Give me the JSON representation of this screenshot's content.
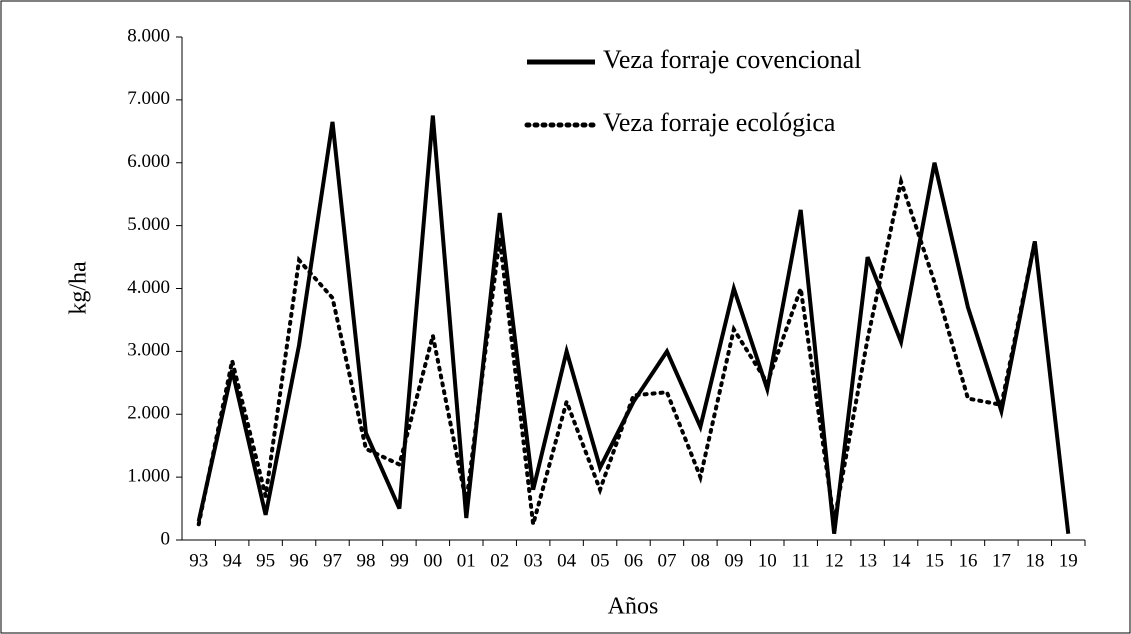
{
  "chart_data": {
    "type": "line",
    "y_label": "kg/ha",
    "x_label": "Años",
    "categories": [
      "93",
      "94",
      "95",
      "96",
      "97",
      "98",
      "99",
      "00",
      "01",
      "02",
      "03",
      "04",
      "05",
      "06",
      "07",
      "08",
      "09",
      "10",
      "11",
      "12",
      "13",
      "14",
      "15",
      "16",
      "17",
      "18",
      "19"
    ],
    "series": [
      {
        "name": "Veza forraje covencional",
        "color": "#000000",
        "dash": "solid",
        "values": [
          300,
          2700,
          400,
          3100,
          6650,
          1700,
          500,
          6750,
          350,
          5200,
          800,
          3000,
          1150,
          2200,
          3000,
          1800,
          4000,
          2400,
          5250,
          100,
          4500,
          3150,
          6000,
          3700,
          2050,
          4750,
          100
        ]
      },
      {
        "name": "Veza forraje ecológica",
        "color": "#000000",
        "dash": "dotted",
        "values": [
          250,
          2850,
          700,
          4450,
          3850,
          1450,
          1200,
          3250,
          600,
          4800,
          250,
          2200,
          800,
          2300,
          2350,
          1000,
          3350,
          2500,
          4000,
          300,
          3200,
          5700,
          4100,
          2250,
          2150,
          4750,
          null
        ]
      }
    ],
    "ylim": [
      0,
      8000
    ],
    "yticks": [
      {
        "value": 0,
        "label": "0"
      },
      {
        "value": 1000,
        "label": "1.000"
      },
      {
        "value": 2000,
        "label": "2.000"
      },
      {
        "value": 3000,
        "label": "3.000"
      },
      {
        "value": 4000,
        "label": "4.000"
      },
      {
        "value": 5000,
        "label": "5.000"
      },
      {
        "value": 6000,
        "label": "6.000"
      },
      {
        "value": 7000,
        "label": "7.000"
      },
      {
        "value": 8000,
        "label": "8.000"
      }
    ],
    "grid": false,
    "legend": "top"
  }
}
